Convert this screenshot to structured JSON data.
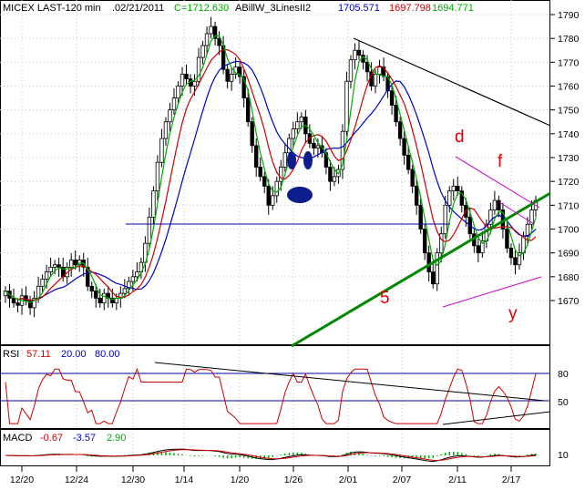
{
  "header": {
    "symbol": "MICEX LAST-120 min",
    "date": ".02/21/2011",
    "close_text": "C=1712.630",
    "indicator": "ABillW_3LinesII2",
    "v1": "1705.571",
    "v2": "1697.798",
    "v3": "1694.771"
  },
  "rsi": {
    "label": "RSI",
    "value": "57.11",
    "low": "20.00",
    "high": "80.00",
    "ticks": [
      "80",
      "50"
    ]
  },
  "macd": {
    "label": "MACD",
    "v1": "-0.67",
    "v2": "-3.57",
    "v3": "2.90",
    "ticks": [
      "10"
    ]
  },
  "colors": {
    "bg": "#ffffff",
    "price": "#000000",
    "fast_ma": "#00aa00",
    "mid_ma": "#cc0000",
    "slow_ma": "#0000cc",
    "support": "#008800",
    "channel": "#cc00cc",
    "annotation": "#e00000"
  },
  "chart_data": {
    "type": "candlestick",
    "x_tick_labels": [
      "12/20",
      "12/24",
      "12/30",
      "1/14",
      "1/20",
      "1/26",
      "2/01",
      "2/07",
      "2/11",
      "2/17"
    ],
    "y_tick_labels": [
      "1790",
      "1780",
      "1770",
      "1760",
      "1750",
      "1740",
      "1730",
      "1720",
      "1710",
      "1700",
      "1690",
      "1680",
      "1670"
    ],
    "ylim": [
      1660,
      1793
    ],
    "closes": [
      1674,
      1671,
      1669,
      1668,
      1672,
      1670,
      1667,
      1671,
      1676,
      1679,
      1682,
      1684,
      1685,
      1684,
      1680,
      1684,
      1687,
      1685,
      1687,
      1684,
      1676,
      1674,
      1671,
      1669,
      1673,
      1671,
      1669,
      1671,
      1673,
      1675,
      1678,
      1680,
      1682,
      1686,
      1694,
      1705,
      1716,
      1728,
      1738,
      1745,
      1750,
      1755,
      1760,
      1765,
      1763,
      1760,
      1762,
      1772,
      1777,
      1782,
      1785,
      1780,
      1777,
      1767,
      1762,
      1765,
      1768,
      1764,
      1755,
      1745,
      1735,
      1726,
      1722,
      1718,
      1710,
      1714,
      1720,
      1726,
      1732,
      1738,
      1742,
      1745,
      1747,
      1740,
      1736,
      1734,
      1735,
      1732,
      1726,
      1720,
      1722,
      1725,
      1741,
      1762,
      1771,
      1775,
      1773,
      1770,
      1766,
      1760,
      1765,
      1768,
      1764,
      1758,
      1752,
      1745,
      1738,
      1731,
      1725,
      1718,
      1710,
      1700,
      1690,
      1682,
      1677,
      1690,
      1698,
      1710,
      1716,
      1718,
      1716,
      1710,
      1705,
      1698,
      1693,
      1690,
      1695,
      1702,
      1708,
      1712,
      1708,
      1700,
      1692,
      1688,
      1685,
      1690,
      1697,
      1702,
      1708,
      1712
    ],
    "moving_averages": [
      "green (fast)",
      "red (medium)",
      "blue (slow)"
    ],
    "horizontal_level": 1706,
    "annotations": [
      "d",
      "f",
      "5",
      "y"
    ],
    "rsi_levels": [
      20,
      80
    ]
  }
}
